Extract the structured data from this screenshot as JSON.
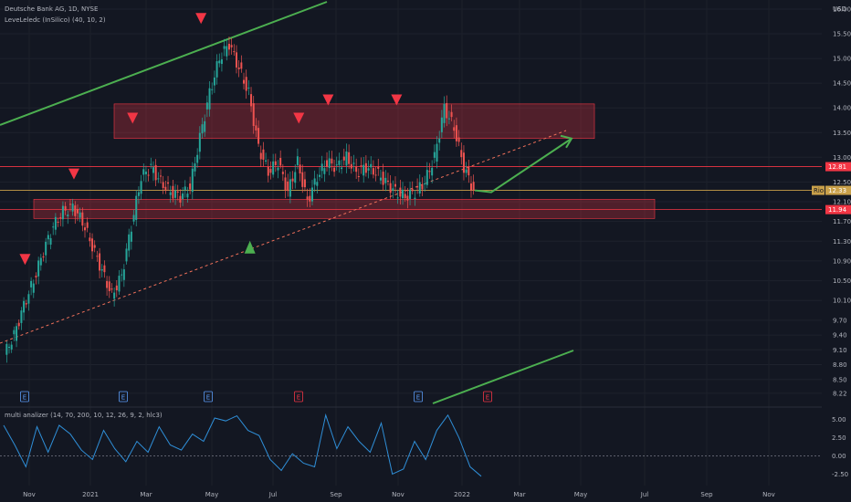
{
  "chart_data": {
    "type": "candlestick",
    "title": "Deutsche Bank AG, 1D, NYSE",
    "indicator": "LeveLeledc (InSilico) (40, 10, 2)",
    "currency": "USD",
    "price_ticks": [
      "16.00",
      "15.50",
      "15.00",
      "14.50",
      "14.00",
      "13.50",
      "13.00",
      "12.50",
      "12.10",
      "11.70",
      "11.30",
      "10.90",
      "10.50",
      "10.10",
      "9.70",
      "9.40",
      "9.10",
      "8.80",
      "8.50",
      "8.22"
    ],
    "price_levels": [
      {
        "label": "12.81",
        "price": 12.81,
        "color": "#f23645"
      },
      {
        "label": "12.33",
        "price": 12.33,
        "color": "#c9a04a"
      },
      {
        "label": "11.94",
        "price": 11.94,
        "color": "#f23645"
      }
    ],
    "price_badge": "Rio",
    "x_labels": [
      "Nov",
      "2021",
      "Mar",
      "May",
      "Jul",
      "Sep",
      "Nov",
      "2022",
      "Mar",
      "May",
      "Jul",
      "Sep",
      "Nov"
    ],
    "resistance_zone": {
      "from": 13.38,
      "to": 14.08
    },
    "support_zone": {
      "from": 11.76,
      "to": 12.15
    },
    "earnings_markers": [
      "E",
      "E",
      "E",
      "E",
      "E",
      "E"
    ],
    "down_arrows": [
      {
        "index": 2,
        "price": 10.82
      },
      {
        "index": 7,
        "price": 12.55
      },
      {
        "index": 13,
        "price": 13.68
      },
      {
        "index": 20,
        "price": 15.7
      },
      {
        "index": 30,
        "price": 13.68
      },
      {
        "index": 33,
        "price": 14.05
      },
      {
        "index": 40,
        "price": 14.05
      }
    ],
    "up_arrows": [
      {
        "index": 25,
        "price": 11.05
      }
    ],
    "series": [
      {
        "name": "close",
        "values": [
          9.0,
          9.4,
          10.0,
          10.5,
          11.1,
          11.6,
          11.9,
          12.0,
          11.7,
          11.2,
          10.7,
          10.2,
          10.6,
          11.6,
          12.6,
          12.8,
          12.5,
          12.3,
          12.2,
          12.4,
          13.4,
          14.3,
          15.0,
          15.3,
          14.8,
          14.3,
          13.2,
          12.7,
          12.9,
          12.3,
          12.9,
          12.1,
          12.6,
          12.9,
          12.8,
          13.0,
          12.7,
          12.8,
          12.7,
          12.5,
          12.3,
          12.2,
          12.3,
          12.5,
          13.0,
          14.0,
          13.6,
          12.8,
          12.33
        ]
      }
    ],
    "projection_from": 12.33,
    "projection_to": 13.38,
    "oscillator": {
      "title": "multi analizer (14, 70, 200, 10, 12, 26, 9, 2, hlc3)",
      "ticks": [
        "5.00",
        "2.50",
        "0.00",
        "-2.50"
      ],
      "values": [
        4.2,
        1.5,
        -1.5,
        4.0,
        0.5,
        4.2,
        3.0,
        0.8,
        -0.5,
        3.5,
        1.0,
        -0.8,
        2.0,
        0.5,
        4.0,
        1.5,
        0.8,
        3.0,
        2.0,
        5.2,
        4.8,
        5.5,
        3.5,
        2.8,
        -0.5,
        -2.0,
        0.3,
        -1.0,
        -1.5,
        5.6,
        1.0,
        4.0,
        2.0,
        0.5,
        4.5,
        -2.5,
        -1.8,
        2.0,
        -0.5,
        3.5,
        5.6,
        2.5,
        -1.5,
        -2.8
      ]
    }
  }
}
